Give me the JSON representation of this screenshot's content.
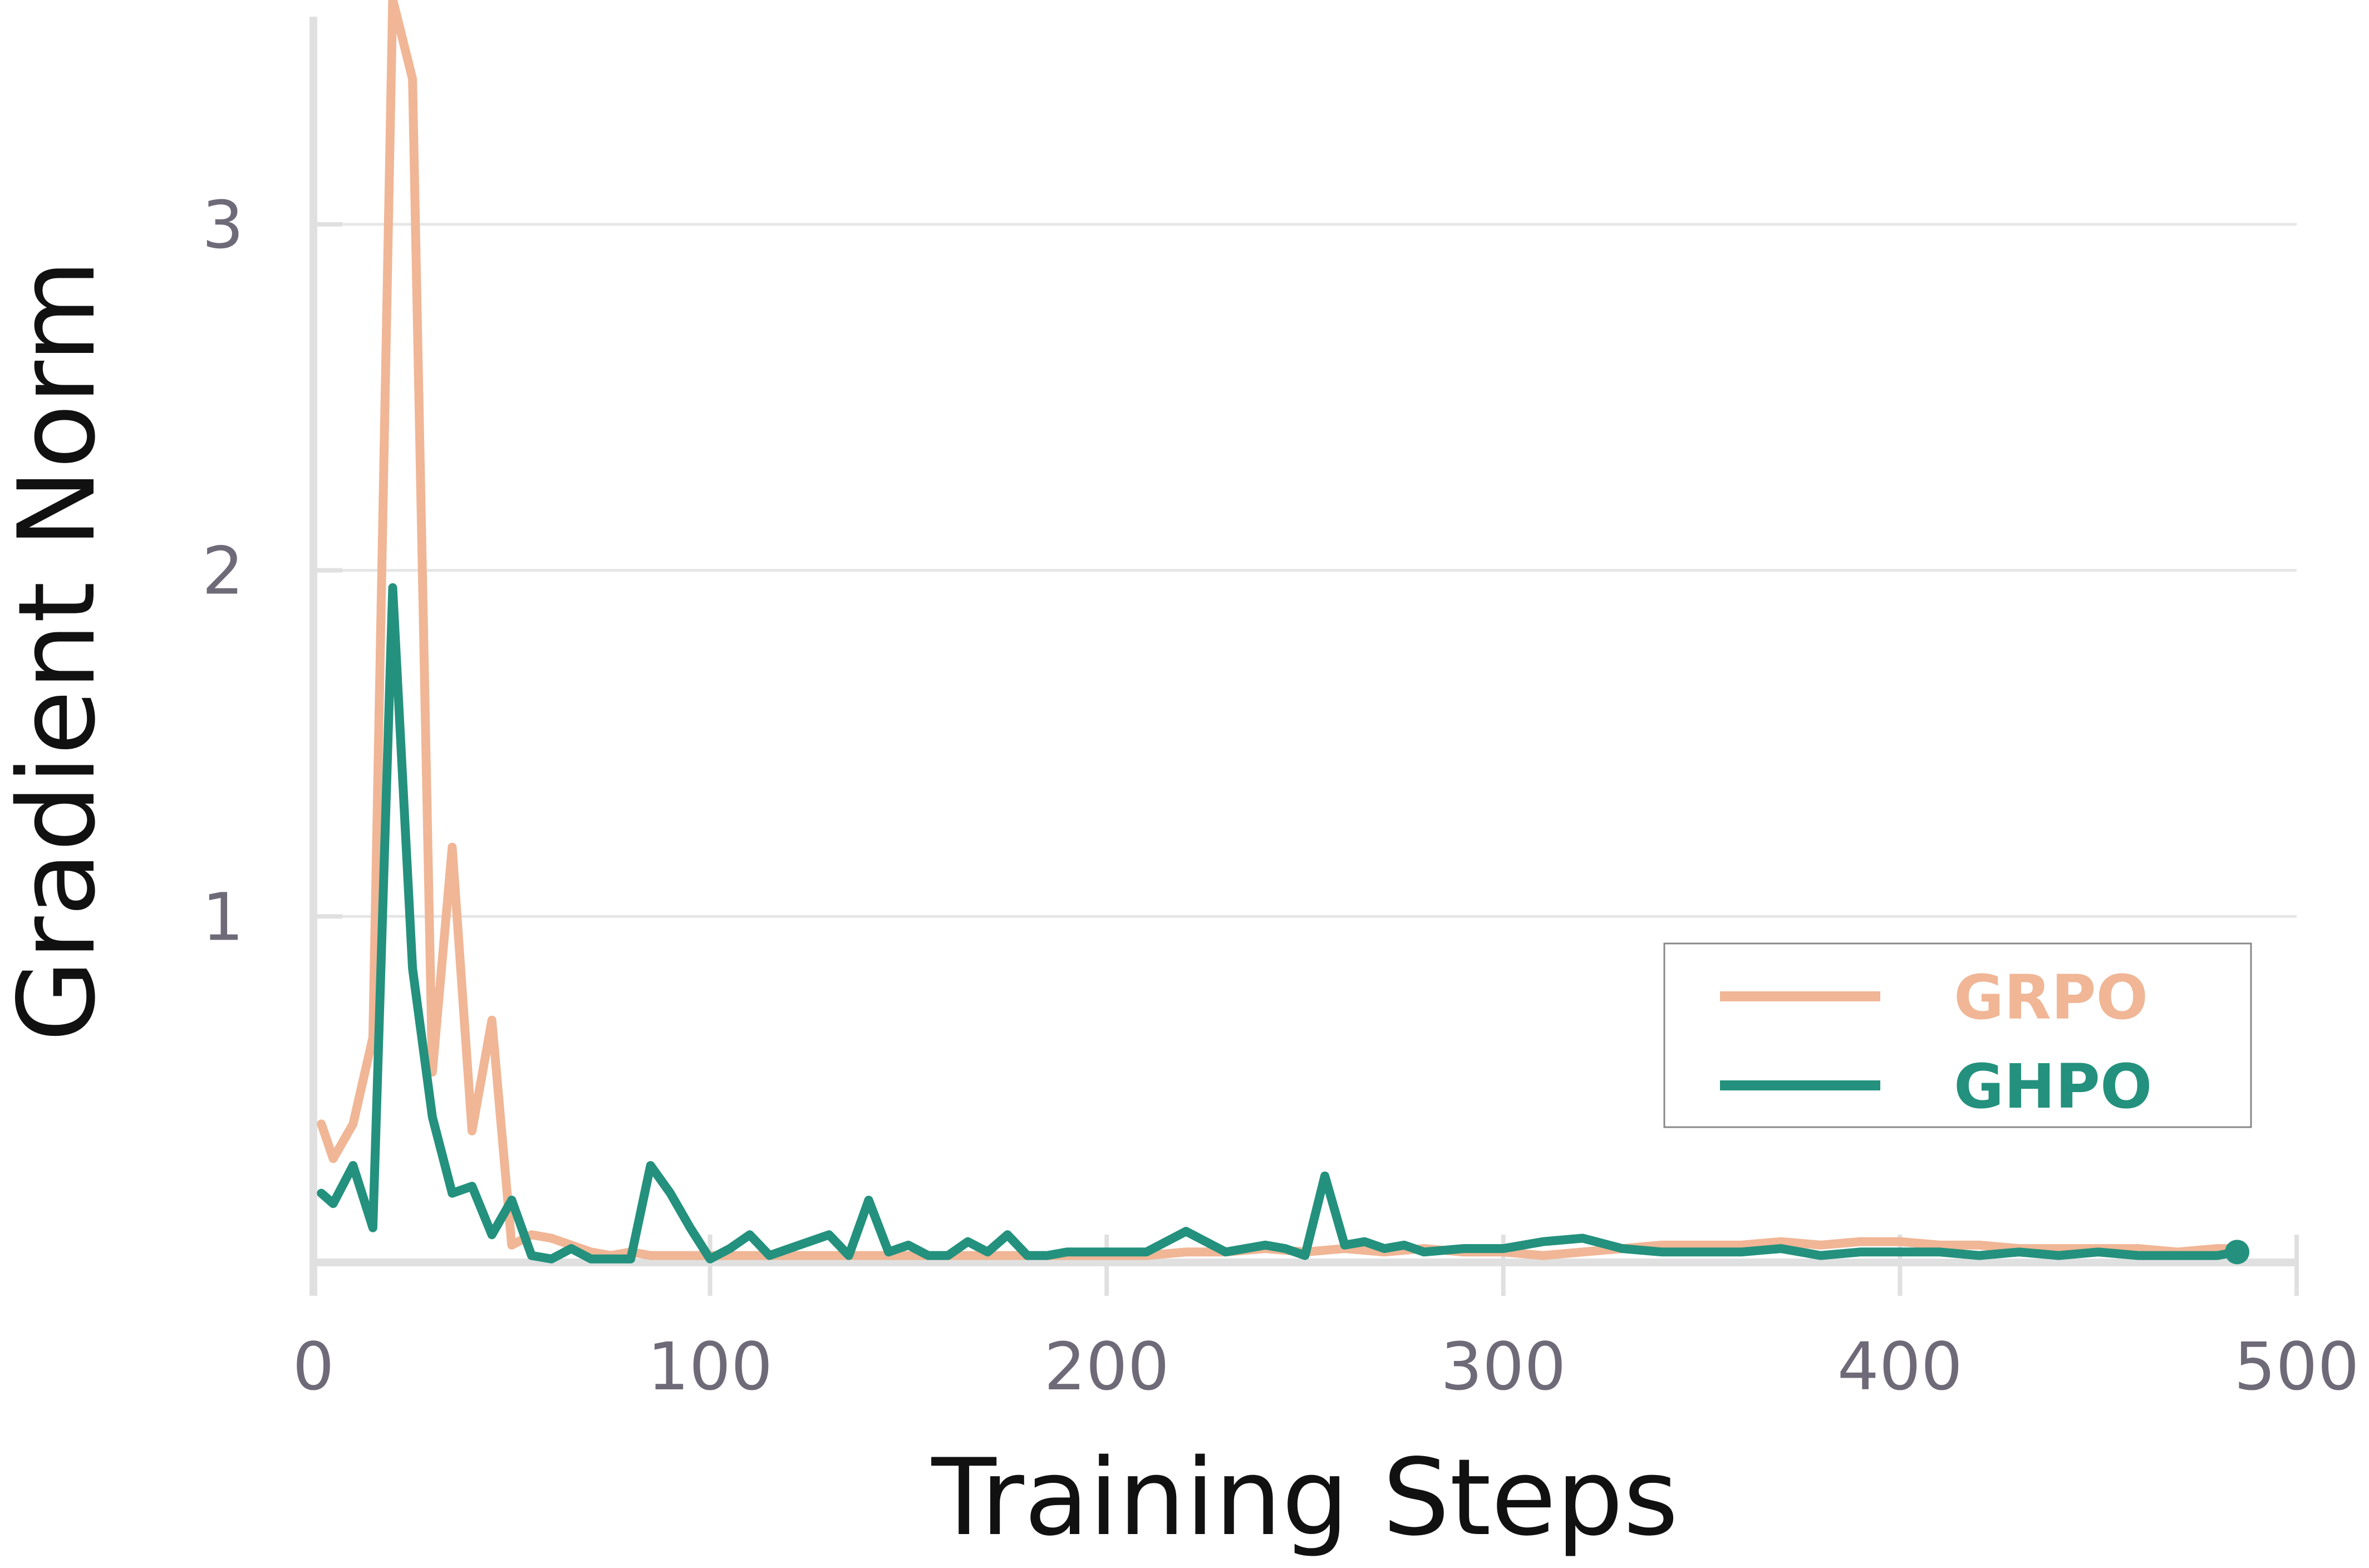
{
  "chart_data": {
    "type": "line",
    "title": "",
    "xlabel": "Training Steps",
    "ylabel": "Gradient Norm",
    "xlim": [
      0,
      500
    ],
    "ylim": [
      0,
      3.6
    ],
    "x_ticks": [
      "0",
      "100",
      "200",
      "300",
      "400",
      "500"
    ],
    "y_ticks": [
      "1",
      "2",
      "3"
    ],
    "grid": "horizontal",
    "legend_position": "bottom-right",
    "series": [
      {
        "name": "GRPO",
        "color": "#f0b696",
        "x": [
          2,
          5,
          10,
          15,
          20,
          25,
          30,
          35,
          40,
          45,
          50,
          55,
          60,
          65,
          70,
          75,
          80,
          85,
          90,
          95,
          100,
          110,
          120,
          130,
          140,
          150,
          160,
          170,
          180,
          190,
          200,
          210,
          220,
          230,
          240,
          250,
          260,
          270,
          280,
          290,
          300,
          310,
          320,
          330,
          340,
          350,
          360,
          370,
          380,
          390,
          400,
          410,
          420,
          430,
          440,
          450,
          460,
          470,
          480,
          485
        ],
        "values": [
          0.4,
          0.3,
          0.4,
          0.65,
          3.65,
          3.42,
          0.55,
          1.2,
          0.38,
          0.7,
          0.05,
          0.08,
          0.07,
          0.05,
          0.03,
          0.02,
          0.03,
          0.02,
          0.02,
          0.02,
          0.02,
          0.02,
          0.02,
          0.02,
          0.02,
          0.02,
          0.02,
          0.02,
          0.02,
          0.02,
          0.02,
          0.02,
          0.03,
          0.03,
          0.04,
          0.03,
          0.04,
          0.03,
          0.04,
          0.03,
          0.03,
          0.02,
          0.03,
          0.04,
          0.05,
          0.05,
          0.05,
          0.06,
          0.05,
          0.06,
          0.06,
          0.05,
          0.05,
          0.04,
          0.04,
          0.04,
          0.04,
          0.03,
          0.04,
          0.04
        ]
      },
      {
        "name": "GHPO",
        "color": "#23917d",
        "x": [
          2,
          5,
          10,
          15,
          20,
          25,
          30,
          35,
          40,
          45,
          50,
          55,
          60,
          65,
          70,
          75,
          80,
          85,
          90,
          95,
          100,
          105,
          110,
          115,
          120,
          130,
          135,
          140,
          145,
          150,
          155,
          160,
          165,
          170,
          175,
          180,
          185,
          190,
          200,
          210,
          220,
          230,
          240,
          245,
          250,
          255,
          260,
          265,
          270,
          275,
          280,
          290,
          300,
          310,
          320,
          330,
          340,
          350,
          360,
          370,
          380,
          390,
          400,
          410,
          420,
          430,
          440,
          450,
          460,
          470,
          480,
          485
        ],
        "values": [
          0.2,
          0.17,
          0.28,
          0.1,
          1.95,
          0.85,
          0.42,
          0.2,
          0.22,
          0.08,
          0.18,
          0.02,
          0.01,
          0.04,
          0.01,
          0.01,
          0.01,
          0.28,
          0.2,
          0.1,
          0.01,
          0.04,
          0.08,
          0.02,
          0.04,
          0.08,
          0.02,
          0.18,
          0.03,
          0.05,
          0.02,
          0.02,
          0.06,
          0.03,
          0.08,
          0.02,
          0.02,
          0.03,
          0.03,
          0.03,
          0.09,
          0.03,
          0.05,
          0.04,
          0.02,
          0.25,
          0.05,
          0.06,
          0.04,
          0.05,
          0.03,
          0.04,
          0.04,
          0.06,
          0.07,
          0.04,
          0.03,
          0.03,
          0.03,
          0.04,
          0.02,
          0.03,
          0.03,
          0.03,
          0.02,
          0.03,
          0.02,
          0.03,
          0.02,
          0.02,
          0.02,
          0.03
        ]
      }
    ]
  }
}
